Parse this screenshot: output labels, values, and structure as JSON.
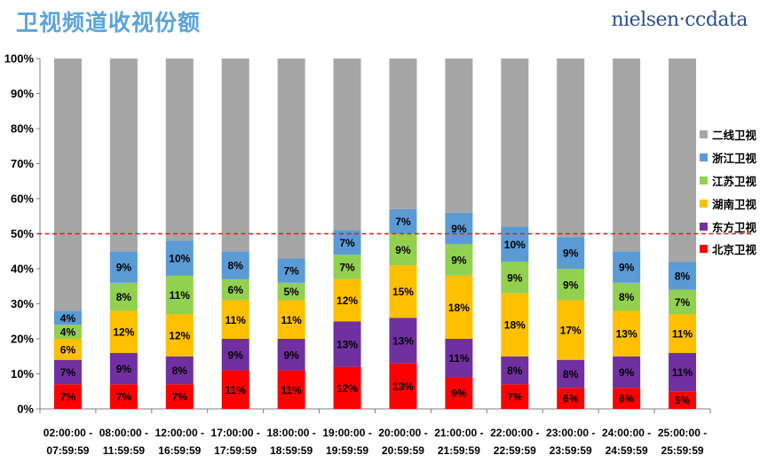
{
  "title": "卫视频道收视份额",
  "brand": "nielsen·ccdata",
  "chart_data": {
    "type": "bar",
    "stacked": true,
    "title": "卫视频道收视份额",
    "xlabel": "",
    "ylabel": "",
    "ylim": [
      0,
      100
    ],
    "yticks": [
      "0%",
      "10%",
      "20%",
      "30%",
      "40%",
      "50%",
      "60%",
      "70%",
      "80%",
      "90%",
      "100%"
    ],
    "reference_line": {
      "value": 50,
      "style": "dashed",
      "color": "#e41a1c"
    },
    "categories": [
      [
        "02:00:00 -",
        "07:59:59"
      ],
      [
        "08:00:00 -",
        "11:59:59"
      ],
      [
        "12:00:00 -",
        "16:59:59"
      ],
      [
        "17:00:00 -",
        "17:59:59"
      ],
      [
        "18:00:00 -",
        "18:59:59"
      ],
      [
        "19:00:00 -",
        "19:59:59"
      ],
      [
        "20:00:00 -",
        "20:59:59"
      ],
      [
        "21:00:00 -",
        "21:59:59"
      ],
      [
        "22:00:00 -",
        "22:59:59"
      ],
      [
        "23:00:00 -",
        "23:59:59"
      ],
      [
        "24:00:00 -",
        "24:59:59"
      ],
      [
        "25:00:00 -",
        "25:59:59"
      ]
    ],
    "series": [
      {
        "name": "北京卫视",
        "color": "#ff0000",
        "values": [
          7,
          7,
          7,
          11,
          11,
          12,
          13,
          9,
          7,
          6,
          6,
          5
        ]
      },
      {
        "name": "东方卫视",
        "color": "#7030a0",
        "values": [
          7,
          9,
          8,
          9,
          9,
          13,
          13,
          11,
          8,
          8,
          9,
          11
        ]
      },
      {
        "name": "湖南卫视",
        "color": "#ffc000",
        "values": [
          6,
          12,
          12,
          11,
          11,
          12,
          15,
          18,
          18,
          17,
          13,
          11
        ]
      },
      {
        "name": "江苏卫视",
        "color": "#92d050",
        "values": [
          4,
          8,
          11,
          6,
          5,
          7,
          9,
          9,
          9,
          9,
          8,
          7
        ]
      },
      {
        "name": "浙江卫视",
        "color": "#5b9bd5",
        "values": [
          4,
          9,
          10,
          8,
          7,
          7,
          7,
          9,
          10,
          9,
          9,
          8
        ]
      },
      {
        "name": "二线卫视",
        "color": "#a6a6a6",
        "values": [
          72,
          55,
          52,
          55,
          57,
          49,
          43,
          44,
          48,
          51,
          55,
          58
        ]
      }
    ],
    "legend_position": "right"
  }
}
